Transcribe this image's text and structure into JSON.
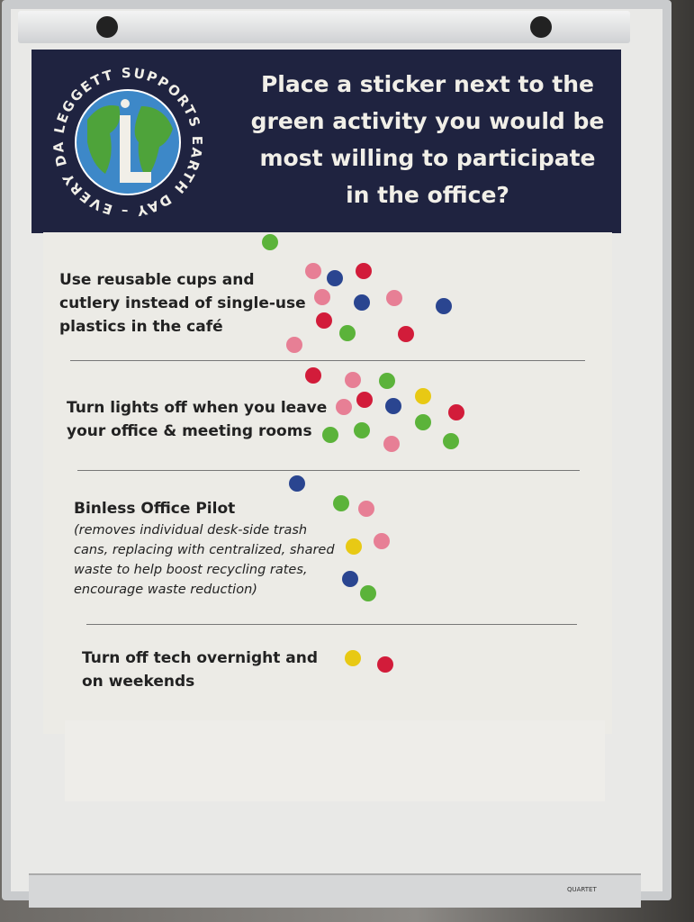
{
  "poster": {
    "logo_text": "LEGGETT SUPPORTS EARTH DAY – EVERY DAY.",
    "logo_letter": "L",
    "question": "Place a sticker next to the green activity you would be most willing to participate in the office?",
    "options": [
      {
        "label": "Use reusable cups and cutlery instead of single-use plastics in the café",
        "stickers": [
          "green",
          "pink",
          "blue",
          "red",
          "pink",
          "blue",
          "pink",
          "blue",
          "red",
          "green",
          "red",
          "pink"
        ]
      },
      {
        "label": "Turn lights off when you leave your office & meeting rooms",
        "stickers": [
          "red",
          "pink",
          "green",
          "pink",
          "red",
          "blue",
          "yellow",
          "red",
          "green",
          "green",
          "green",
          "pink",
          "green"
        ]
      },
      {
        "label": "Binless Office Pilot",
        "description": "(removes individual desk-side trash cans, replacing with centralized, shared waste to help boost recycling rates, encourage waste reduction)",
        "stickers": [
          "blue",
          "green",
          "pink",
          "yellow",
          "pink",
          "blue",
          "green"
        ]
      },
      {
        "label": "Turn off tech overnight and on weekends",
        "stickers": [
          "yellow",
          "red"
        ]
      }
    ]
  },
  "board_brand": "QUARTET",
  "colors": {
    "header": "#1f2340",
    "pink": "#e77f95",
    "red": "#d21c3a",
    "blue": "#2a4590",
    "green": "#5bb33a",
    "yellow": "#e8c914"
  }
}
